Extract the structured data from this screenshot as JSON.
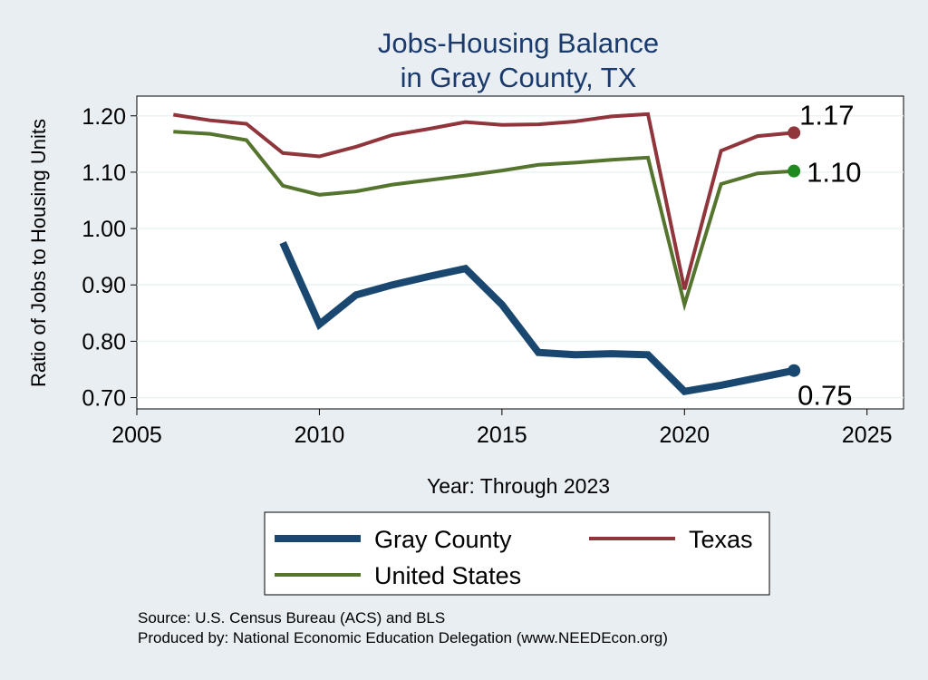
{
  "chart_data": {
    "type": "line",
    "title": [
      "Jobs-Housing Balance",
      "in Gray County, TX"
    ],
    "xlabel": "Year: Through 2023",
    "ylabel": "Ratio of Jobs to Housing Units",
    "xlim": [
      2005,
      2026
    ],
    "ylim": [
      0.68,
      1.235
    ],
    "xticks": [
      2005,
      2010,
      2015,
      2020,
      2025
    ],
    "yticks": [
      0.7,
      0.8,
      0.9,
      1.0,
      1.1,
      1.2
    ],
    "ytick_labels": [
      "0.70",
      "0.80",
      "0.90",
      "1.00",
      "1.10",
      "1.20"
    ],
    "grid": true,
    "legend_position": "bottom",
    "series": [
      {
        "name": "Gray County",
        "color": "#1a476f",
        "x": [
          2009,
          2010,
          2011,
          2012,
          2013,
          2014,
          2015,
          2016,
          2017,
          2018,
          2019,
          2020,
          2021,
          2022,
          2023
        ],
        "values": [
          0.975,
          0.83,
          0.882,
          0.9,
          0.915,
          0.929,
          0.865,
          0.78,
          0.776,
          0.778,
          0.776,
          0.711,
          0.722,
          0.735,
          0.748
        ],
        "end_label": "0.75",
        "end_marker_color": "#1a476f"
      },
      {
        "name": "Texas",
        "color": "#90353b",
        "x": [
          2006,
          2007,
          2008,
          2009,
          2010,
          2011,
          2012,
          2013,
          2014,
          2015,
          2016,
          2017,
          2018,
          2019,
          2020,
          2021,
          2022,
          2023
        ],
        "values": [
          1.202,
          1.192,
          1.186,
          1.134,
          1.128,
          1.145,
          1.166,
          1.177,
          1.189,
          1.184,
          1.185,
          1.19,
          1.199,
          1.203,
          0.892,
          1.138,
          1.164,
          1.17
        ],
        "end_label": "1.17",
        "end_marker_color": "#90353b"
      },
      {
        "name": "United States",
        "color": "#55752f",
        "x": [
          2006,
          2007,
          2008,
          2009,
          2010,
          2011,
          2012,
          2013,
          2014,
          2015,
          2016,
          2017,
          2018,
          2019,
          2020,
          2021,
          2022,
          2023
        ],
        "values": [
          1.172,
          1.168,
          1.157,
          1.076,
          1.06,
          1.066,
          1.078,
          1.086,
          1.094,
          1.103,
          1.113,
          1.117,
          1.122,
          1.126,
          0.865,
          1.079,
          1.098,
          1.102
        ],
        "end_label": "1.10",
        "end_marker_color": "#1f8a1f"
      }
    ]
  },
  "footer": {
    "source": "Source: U.S. Census Bureau (ACS) and BLS",
    "produced_by": "Produced by: National Economic Education Delegation (www.NEEDEcon.org)"
  }
}
